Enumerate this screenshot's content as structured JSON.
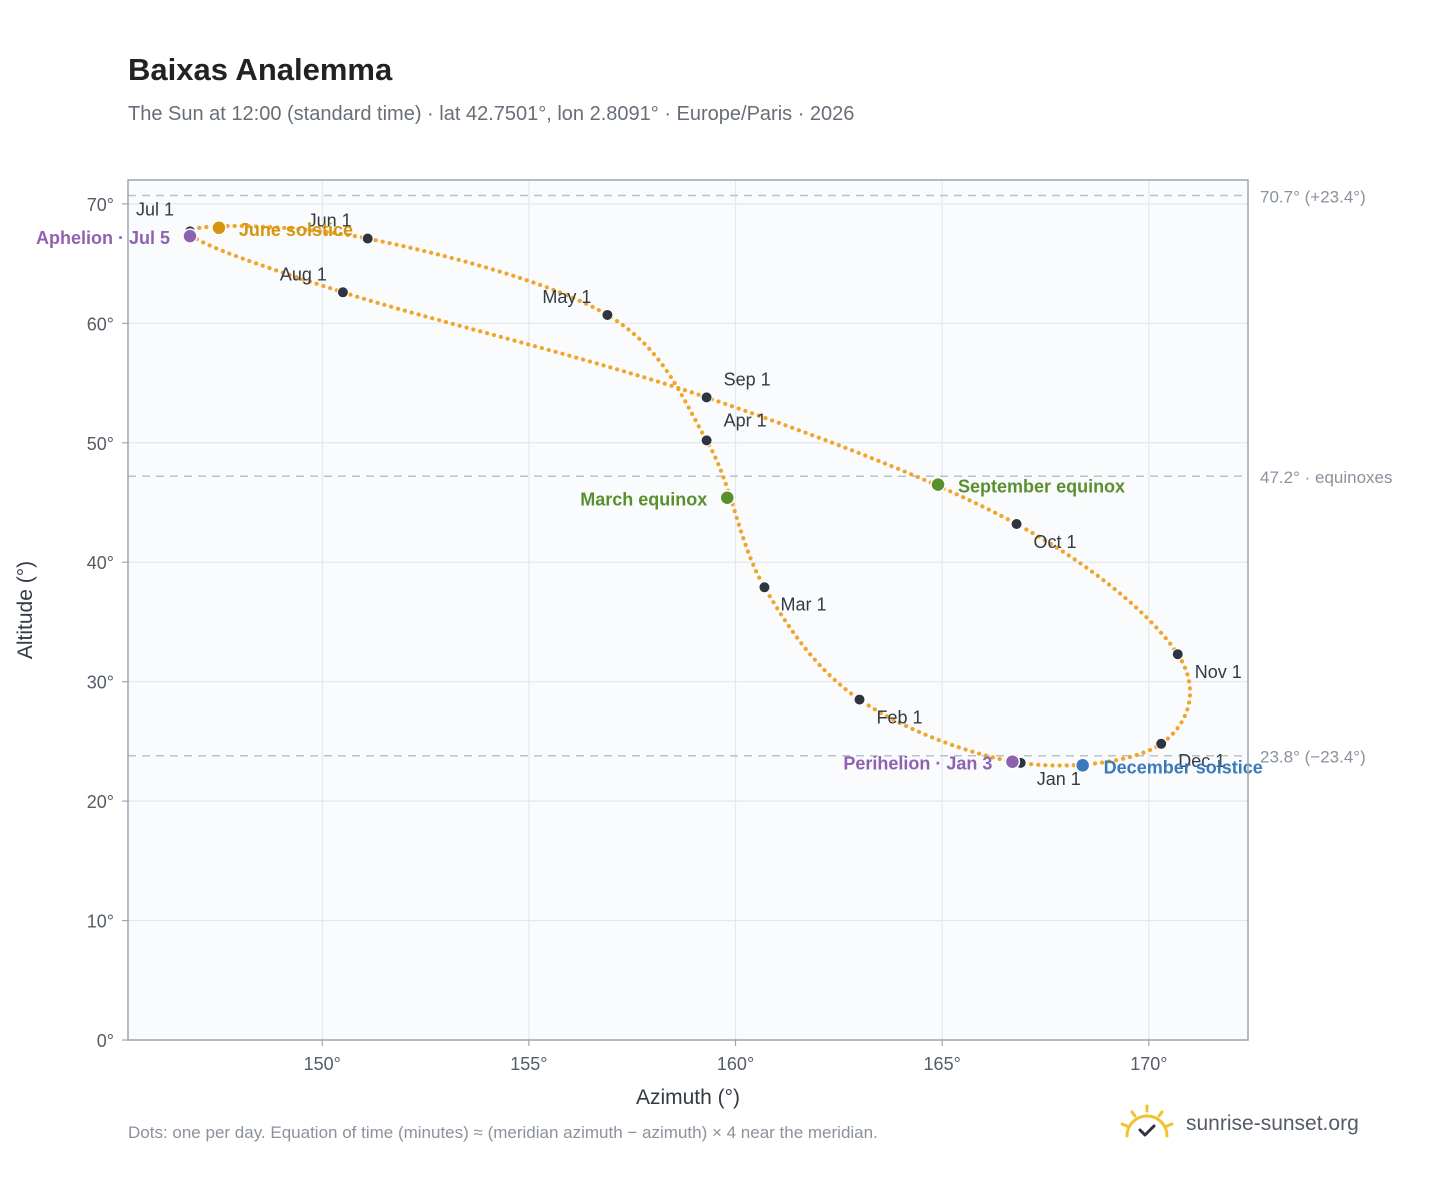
{
  "title": "Baixas Analemma",
  "subtitle": "The Sun at 12:00 (standard time) · lat 42.7501°, lon 2.8091° · Europe/Paris · 2026",
  "footnote": "Dots: one per day. Equation of time (minutes) ≈ (meridian azimuth − azimuth) × 4 near the meridian.",
  "brand": {
    "name": "sunrise-sunset.org",
    "icon": "sun-logo-icon",
    "color": "#f2c12e"
  },
  "colors": {
    "path": "#f2a52a",
    "month_dot": "#2e3440",
    "solstice_june": "#d4960f",
    "solstice_december": "#3a7ab8",
    "equinox": "#5a8f2e",
    "apsis": "#8e62b0",
    "ref_line": "#b8c2cc",
    "plot_bg": "#f9fbfd",
    "grid": "#e3e8ee",
    "frame": "#9aa6b4"
  },
  "chart_data": {
    "type": "scatter",
    "title": "Baixas Analemma",
    "xlabel": "Azimuth (°)",
    "ylabel": "Altitude (°)",
    "xlim": [
      145.3,
      172.4
    ],
    "ylim": [
      0,
      72
    ],
    "xticks": [
      150,
      155,
      160,
      165,
      170
    ],
    "xtick_labels": [
      "150°",
      "155°",
      "160°",
      "165°",
      "170°"
    ],
    "yticks": [
      0,
      10,
      20,
      30,
      40,
      50,
      60,
      70
    ],
    "ytick_labels": [
      "0°",
      "10°",
      "20°",
      "30°",
      "40°",
      "50°",
      "60°",
      "70°"
    ],
    "grid": true,
    "series": [
      {
        "points": [
          [
            166.9,
            23.2
          ],
          [
            163.0,
            28.5
          ],
          [
            160.7,
            37.9
          ],
          [
            159.3,
            50.2
          ],
          [
            156.9,
            60.7
          ],
          [
            151.1,
            67.1
          ],
          [
            146.8,
            67.7
          ],
          [
            150.5,
            62.6
          ],
          [
            159.3,
            53.8
          ],
          [
            166.8,
            43.2
          ],
          [
            170.7,
            32.3
          ],
          [
            170.3,
            24.8
          ],
          [
            166.9,
            23.2
          ]
        ]
      }
    ],
    "month_markers": [
      {
        "label": "Jan 1",
        "azimuth": 166.9,
        "altitude": 23.2
      },
      {
        "label": "Feb 1",
        "azimuth": 163.0,
        "altitude": 28.5
      },
      {
        "label": "Mar 1",
        "azimuth": 160.7,
        "altitude": 37.9
      },
      {
        "label": "Apr 1",
        "azimuth": 159.3,
        "altitude": 50.2
      },
      {
        "label": "May 1",
        "azimuth": 156.9,
        "altitude": 60.7
      },
      {
        "label": "Jun 1",
        "azimuth": 151.1,
        "altitude": 67.1
      },
      {
        "label": "Jul 1",
        "azimuth": 146.8,
        "altitude": 67.7
      },
      {
        "label": "Aug 1",
        "azimuth": 150.5,
        "altitude": 62.6
      },
      {
        "label": "Sep 1",
        "azimuth": 159.3,
        "altitude": 53.8
      },
      {
        "label": "Oct 1",
        "azimuth": 166.8,
        "altitude": 43.2
      },
      {
        "label": "Nov 1",
        "azimuth": 170.7,
        "altitude": 32.3
      },
      {
        "label": "Dec 1",
        "azimuth": 170.3,
        "altitude": 24.8
      }
    ],
    "events": [
      {
        "label": "June solstice",
        "azimuth": 147.5,
        "altitude": 68.0,
        "kind": "solstice_june"
      },
      {
        "label": "December solstice",
        "azimuth": 168.4,
        "altitude": 23.0,
        "kind": "solstice_december"
      },
      {
        "label": "March equinox",
        "azimuth": 159.8,
        "altitude": 45.4,
        "kind": "equinox"
      },
      {
        "label": "September equinox",
        "azimuth": 164.9,
        "altitude": 46.5,
        "kind": "equinox"
      },
      {
        "label": "Aphelion · Jul 5",
        "azimuth": 146.8,
        "altitude": 67.3,
        "kind": "apsis"
      },
      {
        "label": "Perihelion · Jan 3",
        "azimuth": 166.7,
        "altitude": 23.3,
        "kind": "apsis"
      }
    ],
    "reference_lines": [
      {
        "altitude": 70.7,
        "label": "70.7° (+23.4°)"
      },
      {
        "altitude": 47.2,
        "label": "47.2° · equinoxes"
      },
      {
        "altitude": 23.8,
        "label": "23.8° (−23.4°)"
      }
    ]
  }
}
